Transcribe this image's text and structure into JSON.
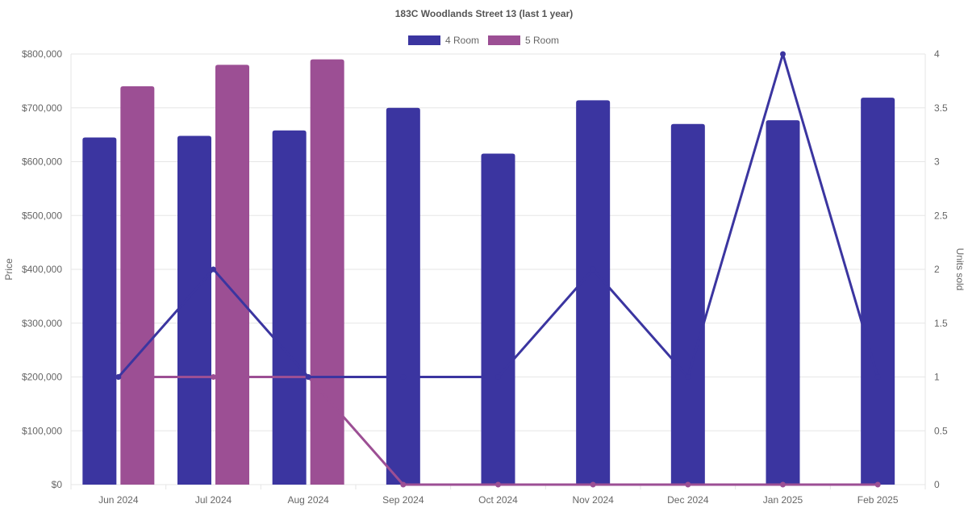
{
  "chart_data": {
    "type": "bar",
    "title": "183C Woodlands Street 13 (last 1 year)",
    "categories": [
      "Jun 2024",
      "Jul 2024",
      "Aug 2024",
      "Sep 2024",
      "Oct 2024",
      "Nov 2024",
      "Dec 2024",
      "Jan 2025",
      "Feb 2025"
    ],
    "y_left": {
      "label": "Price",
      "range": [
        0,
        800000
      ],
      "ticks": [
        "$0",
        "$100,000",
        "$200,000",
        "$300,000",
        "$400,000",
        "$500,000",
        "$600,000",
        "$700,000",
        "$800,000"
      ],
      "tick_values": [
        0,
        100000,
        200000,
        300000,
        400000,
        500000,
        600000,
        700000,
        800000
      ]
    },
    "y_right": {
      "label": "Units sold",
      "range": [
        0,
        4
      ],
      "ticks": [
        "0",
        "0.5",
        "1",
        "1.5",
        "2",
        "2.5",
        "3",
        "3.5",
        "4"
      ],
      "tick_values": [
        0,
        0.5,
        1,
        1.5,
        2,
        2.5,
        3,
        3.5,
        4
      ]
    },
    "legend": {
      "position": "top"
    },
    "grid": true,
    "series": [
      {
        "name": "4 Room",
        "color": "#3b35a0",
        "price": [
          645000,
          648000,
          658000,
          700000,
          615000,
          714000,
          670000,
          677000,
          719000
        ],
        "units": [
          1,
          2,
          1,
          1,
          1,
          2,
          1,
          4,
          1
        ]
      },
      {
        "name": "5 Room",
        "color": "#9c4f94",
        "price": [
          740000,
          780000,
          790000,
          null,
          null,
          null,
          null,
          null,
          null
        ],
        "units": [
          1,
          1,
          1,
          0,
          0,
          0,
          0,
          0,
          0
        ]
      }
    ]
  }
}
